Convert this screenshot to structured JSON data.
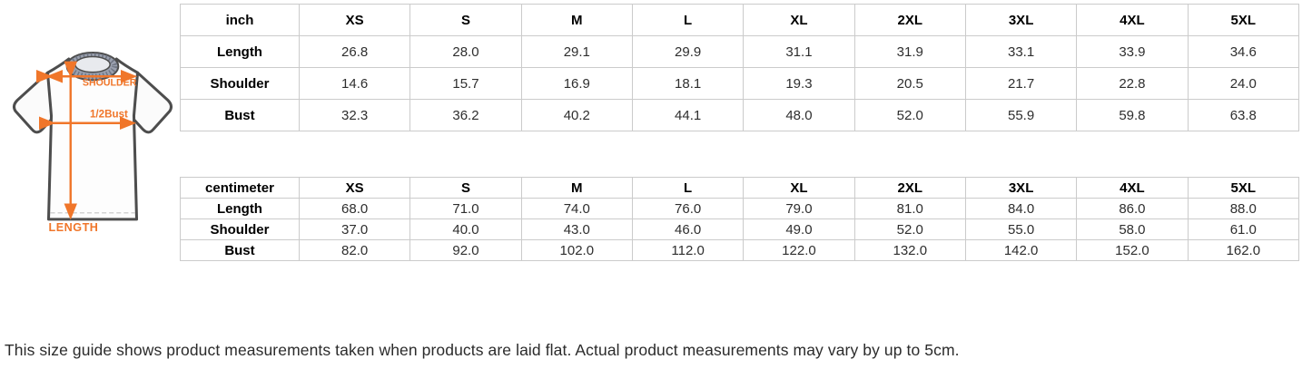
{
  "colors": {
    "accent": "#f0762a",
    "table_border": "#cbcbcb",
    "text": "#000000",
    "note_text": "#2b2b2b",
    "collar": "#9aa0ae",
    "outline": "#4d4d4d"
  },
  "tshirt": {
    "shoulder_label": "SHOULDER",
    "bust_label": "1/2Bust",
    "length_label": "LENGTH"
  },
  "size_tables": {
    "inch": {
      "unit_label": "inch",
      "sizes": [
        "XS",
        "S",
        "M",
        "L",
        "XL",
        "2XL",
        "3XL",
        "4XL",
        "5XL"
      ],
      "rows": [
        {
          "label": "Length",
          "values": [
            "26.8",
            "28.0",
            "29.1",
            "29.9",
            "31.1",
            "31.9",
            "33.1",
            "33.9",
            "34.6"
          ]
        },
        {
          "label": "Shoulder",
          "values": [
            "14.6",
            "15.7",
            "16.9",
            "18.1",
            "19.3",
            "20.5",
            "21.7",
            "22.8",
            "24.0"
          ]
        },
        {
          "label": "Bust",
          "values": [
            "32.3",
            "36.2",
            "40.2",
            "44.1",
            "48.0",
            "52.0",
            "55.9",
            "59.8",
            "63.8"
          ]
        }
      ]
    },
    "centimeter": {
      "unit_label": "centimeter",
      "sizes": [
        "XS",
        "S",
        "M",
        "L",
        "XL",
        "2XL",
        "3XL",
        "4XL",
        "5XL"
      ],
      "rows": [
        {
          "label": "Length",
          "values": [
            "68.0",
            "71.0",
            "74.0",
            "76.0",
            "79.0",
            "81.0",
            "84.0",
            "86.0",
            "88.0"
          ]
        },
        {
          "label": "Shoulder",
          "values": [
            "37.0",
            "40.0",
            "43.0",
            "46.0",
            "49.0",
            "52.0",
            "55.0",
            "58.0",
            "61.0"
          ]
        },
        {
          "label": "Bust",
          "values": [
            "82.0",
            "92.0",
            "102.0",
            "112.0",
            "122.0",
            "132.0",
            "142.0",
            "152.0",
            "162.0"
          ]
        }
      ]
    }
  },
  "footer": {
    "note": "This size guide shows product measurements taken when products are laid flat. Actual product measurements may vary by up to 5cm."
  }
}
